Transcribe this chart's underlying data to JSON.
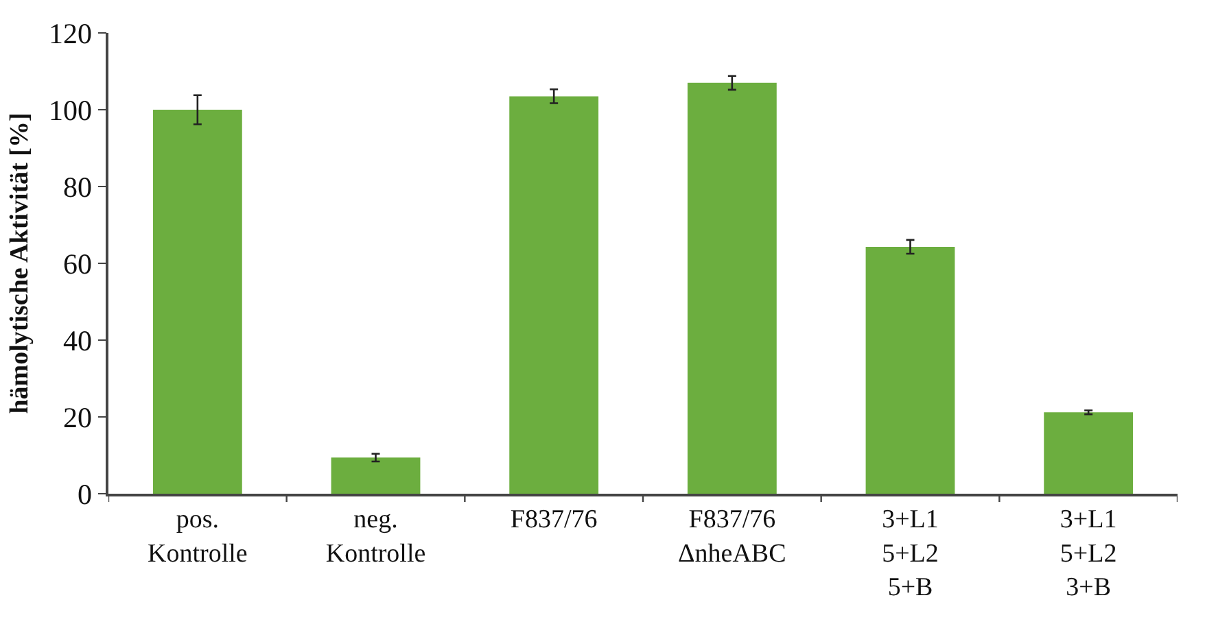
{
  "chart_data": {
    "type": "bar",
    "ylabel": "hämolytische Aktivität [%]",
    "categories": [
      "pos.\nKontrolle",
      "neg.\nKontrolle",
      "F837/76",
      "F837/76\nΔnheABC",
      "3+L1\n5+L2\n5+B",
      "3+L1\n5+L2\n3+B"
    ],
    "values": [
      100,
      9.4,
      103.5,
      107,
      64.3,
      21.2
    ],
    "errors": [
      3.8,
      1.0,
      1.8,
      1.8,
      1.8,
      0.5
    ],
    "color": "#6cae3f",
    "ylim": [
      0,
      120
    ],
    "yticks": [
      0,
      20,
      40,
      60,
      80,
      100,
      120
    ]
  }
}
